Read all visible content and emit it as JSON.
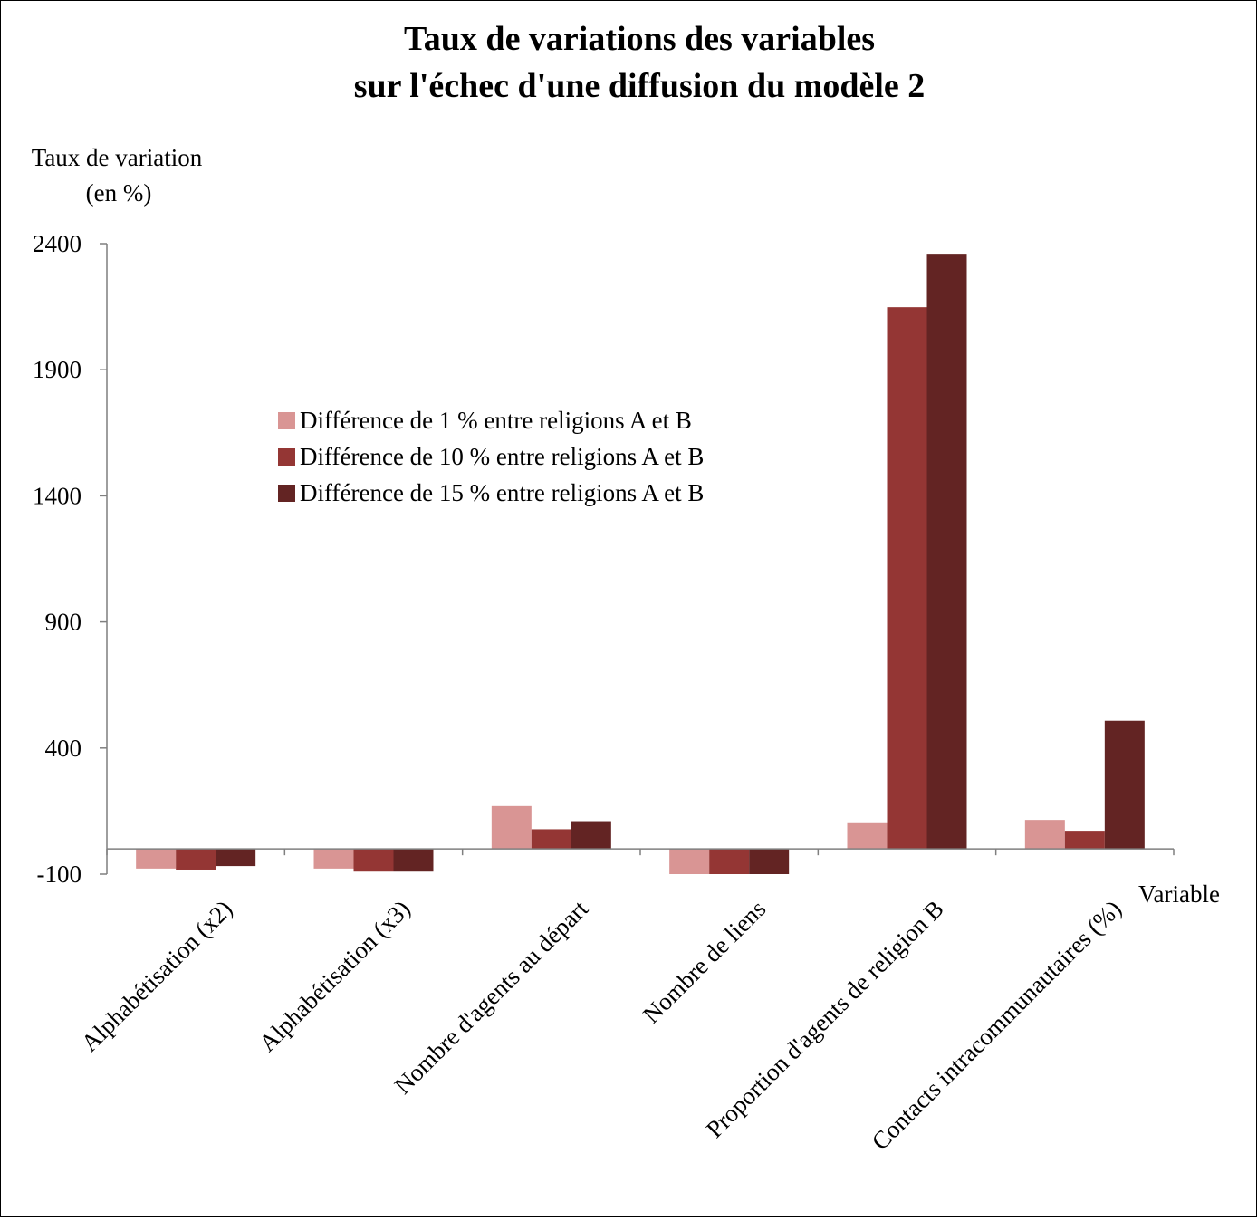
{
  "chart_data": {
    "type": "bar",
    "title_lines": [
      "Taux de variations des variables",
      "sur l'échec d'une diffusion du modèle 2"
    ],
    "ylabel_lines": [
      "Taux de variation",
      "(en %)"
    ],
    "xlabel": "Variable",
    "ylim": [
      -100,
      2400
    ],
    "yticks": [
      -100,
      400,
      900,
      1400,
      1900,
      2400
    ],
    "ytick_labels": [
      "-100",
      "400",
      "900",
      "1400",
      "1900",
      "2400"
    ],
    "categories": [
      "Alphabétisation (x2)",
      "Alphabétisation (x3)",
      "Nombre d'agents au départ",
      "Nombre de liens",
      "Proportion d'agents de religion B",
      "Contacts intracommunautaires (%)"
    ],
    "series": [
      {
        "name": "Différence de 1 % entre religions A et B",
        "color": "#d99594",
        "values": [
          -78,
          -78,
          170,
          -100,
          102,
          115
        ]
      },
      {
        "name": "Différence de 10 % entre religions A et B",
        "color": "#943634",
        "values": [
          -82,
          -90,
          78,
          -100,
          2148,
          72
        ]
      },
      {
        "name": "Différence de 15 % entre religions A et B",
        "color": "#632423",
        "values": [
          -68,
          -90,
          110,
          -100,
          2360,
          508
        ]
      }
    ],
    "legend_position": "upper-center",
    "grid": false
  }
}
